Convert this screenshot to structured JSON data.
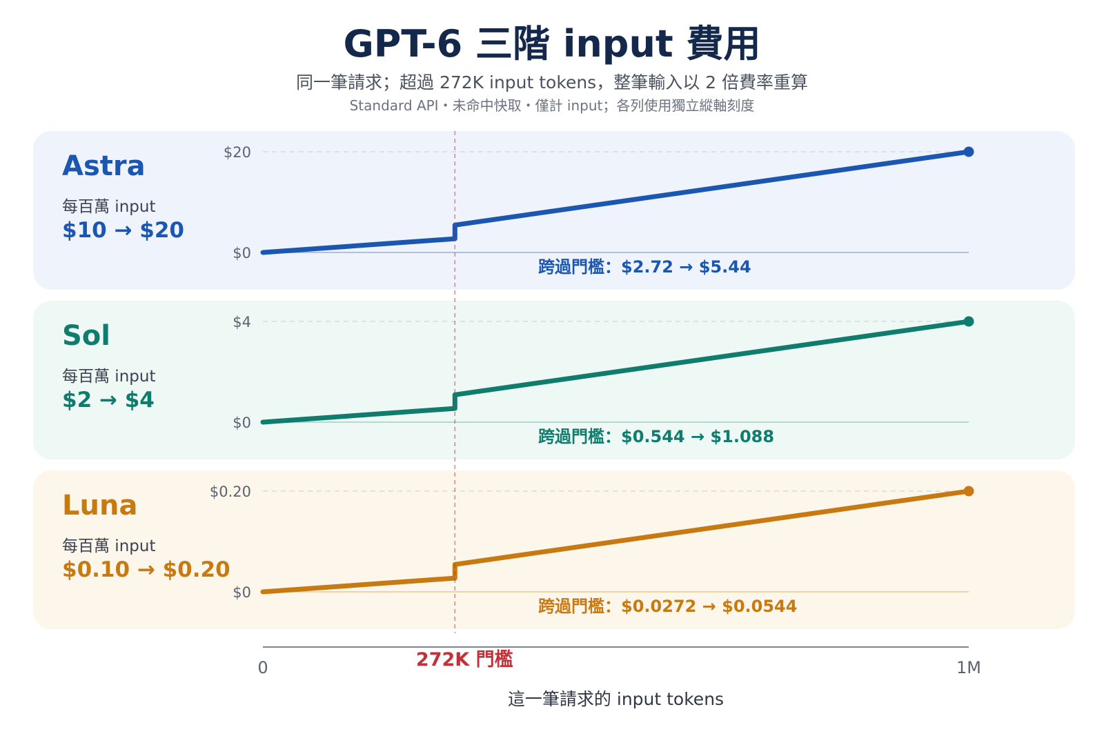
{
  "title": "GPT-6 三階 input 費用",
  "subtitle": "同一筆請求；超過 272K input tokens，整筆輸入以 2 倍費率重算",
  "note": "Standard API・未命中快取・僅計 input；各列使用獨立縱軸刻度",
  "threshold_label": "272K 門檻",
  "x_axis_label": "這一筆請求的 input tokens",
  "x_tick_labels": [
    "0",
    "1M"
  ],
  "rate_caption": "每百萬 input",
  "colors": {
    "threshold": "#c0323a",
    "axis": "#7a8494"
  },
  "panels": [
    {
      "name": "Astra",
      "rate_text": "$10 → $20",
      "jump_text": "跨過門檻：$2.72 → $5.44",
      "y_tick_labels": [
        "$0",
        "$20"
      ],
      "color": "#1b57b0",
      "bg": "#eff4fc",
      "zero_line": "#9fb0cc"
    },
    {
      "name": "Sol",
      "rate_text": "$2 → $4",
      "jump_text": "跨過門檻：$0.544 → $1.088",
      "y_tick_labels": [
        "$0",
        "$4"
      ],
      "color": "#0f7c6e",
      "bg": "#eef8f5",
      "zero_line": "#9fd0c4"
    },
    {
      "name": "Luna",
      "rate_text": "$0.10 → $0.20",
      "jump_text": "跨過門檻：$0.0272 → $0.0544",
      "y_tick_labels": [
        "$0",
        "$0.20"
      ],
      "color": "#c87a12",
      "bg": "#fdf6ea",
      "zero_line": "#e3c79a"
    }
  ],
  "chart_data": {
    "type": "line",
    "x_unit": "input tokens",
    "xlim": [
      0,
      1000000
    ],
    "threshold_x": 272000,
    "series": [
      {
        "name": "Astra",
        "ylim": [
          0,
          20
        ],
        "points": [
          [
            0,
            0
          ],
          [
            272000,
            2.72
          ],
          [
            272000,
            5.44
          ],
          [
            1000000,
            20
          ]
        ]
      },
      {
        "name": "Sol",
        "ylim": [
          0,
          4
        ],
        "points": [
          [
            0,
            0
          ],
          [
            272000,
            0.544
          ],
          [
            272000,
            1.088
          ],
          [
            1000000,
            4
          ]
        ]
      },
      {
        "name": "Luna",
        "ylim": [
          0,
          0.2
        ],
        "points": [
          [
            0,
            0
          ],
          [
            272000,
            0.0272
          ],
          [
            272000,
            0.0544
          ],
          [
            1000000,
            0.2
          ]
        ]
      }
    ]
  }
}
